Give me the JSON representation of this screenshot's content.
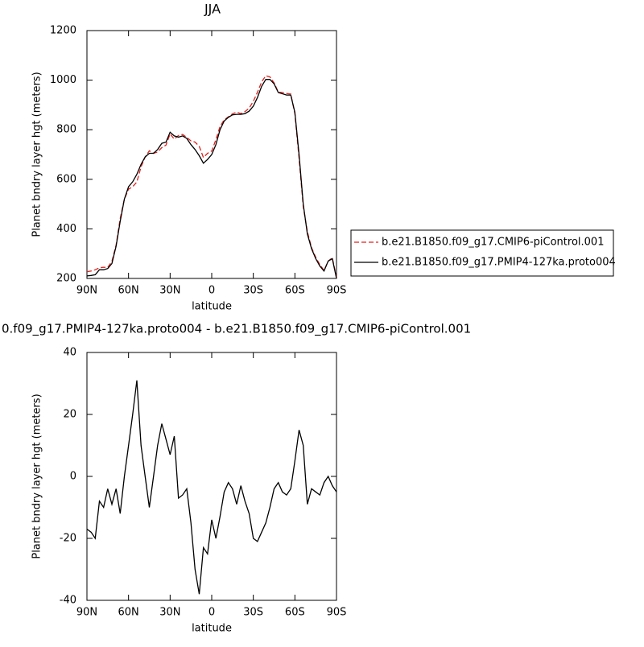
{
  "chart_data": [
    {
      "type": "line",
      "title": "JJA",
      "xlabel": "latitude",
      "ylabel": "Planet bndry layer hgt (meters)",
      "x": [
        90,
        87,
        84,
        81,
        78,
        75,
        72,
        69,
        66,
        63,
        60,
        57,
        54,
        51,
        48,
        45,
        42,
        39,
        36,
        33,
        30,
        27,
        24,
        21,
        18,
        15,
        12,
        9,
        6,
        3,
        0,
        -3,
        -6,
        -9,
        -12,
        -15,
        -18,
        -21,
        -24,
        -27,
        -30,
        -33,
        -36,
        -39,
        -42,
        -45,
        -48,
        -51,
        -54,
        -57,
        -60,
        -63,
        -66,
        -69,
        -72,
        -75,
        -78,
        -81,
        -84,
        -87,
        -90
      ],
      "xlim": [
        90,
        -90
      ],
      "xticks": [
        {
          "value": 90,
          "label": "90N"
        },
        {
          "value": 60,
          "label": "60N"
        },
        {
          "value": 30,
          "label": "30N"
        },
        0,
        {
          "value": -30,
          "label": "30S"
        },
        {
          "value": -60,
          "label": "60S"
        },
        {
          "value": -90,
          "label": "90S"
        }
      ],
      "ylim": [
        200,
        1200
      ],
      "yticks": [
        200,
        400,
        600,
        800,
        1000,
        1200
      ],
      "legend": "right",
      "series": [
        {
          "name": "b.e21.B1850.f09_g17.CMIP6-piControl.001",
          "color": "#e0211d",
          "linestyle": "dashed",
          "values": [
            227,
            230,
            235,
            243,
            245,
            244,
            269,
            334,
            442,
            520,
            560,
            570,
            589,
            650,
            690,
            715,
            705,
            710,
            728,
            738,
            783,
            762,
            777,
            781,
            769,
            755,
            750,
            733,
            688,
            705,
            714,
            760,
            813,
            840,
            852,
            864,
            871,
            865,
            873,
            887,
            915,
            951,
            993,
            1018,
            1013,
            989,
            952,
            950,
            946,
            944,
            865,
            685,
            490,
            389,
            324,
            285,
            256,
            232,
            270,
            283,
            205
          ]
        },
        {
          "name": "b.e21.B1850.f09_g17.PMIP4-127ka.proto004",
          "color": "#000000",
          "linestyle": "solid",
          "values": [
            210,
            212,
            215,
            235,
            235,
            240,
            260,
            330,
            430,
            520,
            570,
            590,
            620,
            660,
            690,
            705,
            705,
            720,
            745,
            750,
            790,
            775,
            770,
            775,
            765,
            740,
            720,
            695,
            665,
            680,
            700,
            740,
            800,
            835,
            850,
            860,
            862,
            862,
            865,
            875,
            895,
            930,
            975,
            1003,
            1003,
            985,
            950,
            945,
            940,
            940,
            870,
            700,
            500,
            380,
            320,
            280,
            250,
            230,
            270,
            280,
            200
          ]
        }
      ]
    },
    {
      "type": "line",
      "title": "0.f09_g17.PMIP4-127ka.proto004 - b.e21.B1850.f09_g17.CMIP6-piControl.001",
      "xlabel": "latitude",
      "ylabel": "Planet bndry layer hgt (meters)",
      "x": [
        90,
        87,
        84,
        81,
        78,
        75,
        72,
        69,
        66,
        63,
        60,
        57,
        54,
        51,
        48,
        45,
        42,
        39,
        36,
        33,
        30,
        27,
        24,
        21,
        18,
        15,
        12,
        9,
        6,
        3,
        0,
        -3,
        -6,
        -9,
        -12,
        -15,
        -18,
        -21,
        -24,
        -27,
        -30,
        -33,
        -36,
        -39,
        -42,
        -45,
        -48,
        -51,
        -54,
        -57,
        -60,
        -63,
        -66,
        -69,
        -72,
        -75,
        -78,
        -81,
        -84,
        -87,
        -90
      ],
      "xlim": [
        90,
        -90
      ],
      "xticks": [
        {
          "value": 90,
          "label": "90N"
        },
        {
          "value": 60,
          "label": "60N"
        },
        {
          "value": 30,
          "label": "30N"
        },
        0,
        {
          "value": -30,
          "label": "30S"
        },
        {
          "value": -60,
          "label": "60S"
        },
        {
          "value": -90,
          "label": "90S"
        }
      ],
      "ylim": [
        -40,
        40
      ],
      "yticks": [
        -40,
        -20,
        0,
        20,
        40
      ],
      "color": "#000000",
      "values": [
        -17,
        -18,
        -20,
        -8,
        -10,
        -4,
        -9,
        -4,
        -12,
        0,
        10,
        20,
        31,
        10,
        0,
        -10,
        0,
        10,
        17,
        12,
        7,
        13,
        -7,
        -6,
        -4,
        -15,
        -30,
        -38,
        -23,
        -25,
        -14,
        -20,
        -13,
        -5,
        -2,
        -4,
        -9,
        -3,
        -8,
        -12,
        -20,
        -21,
        -18,
        -15,
        -10,
        -4,
        -2,
        -5,
        -6,
        -4,
        5,
        15,
        10,
        -9,
        -4,
        -5,
        -6,
        -2,
        0,
        -3,
        -5
      ]
    }
  ]
}
